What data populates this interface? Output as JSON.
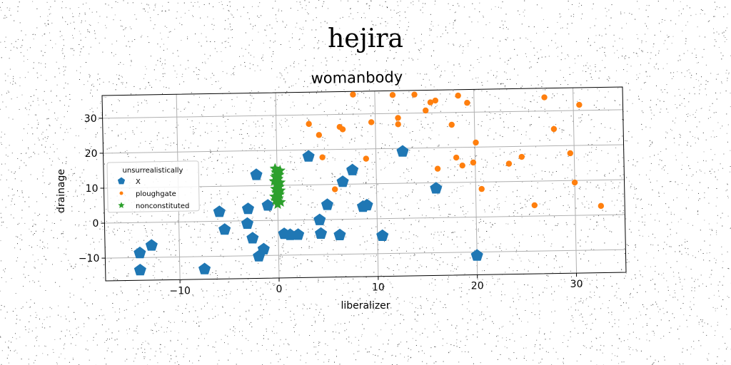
{
  "figure": {
    "suptitle": "hejira"
  },
  "chart_data": {
    "type": "scatter",
    "title": "womanbody",
    "xlabel": "liberalizer",
    "ylabel": "drainage",
    "xlim": [
      -17.5,
      35
    ],
    "ylim": [
      -16.5,
      36.5
    ],
    "xticks": [
      -10,
      0,
      10,
      20,
      30
    ],
    "yticks": [
      -10,
      0,
      10,
      20,
      30
    ],
    "xtick_labels": [
      "−10",
      "0",
      "10",
      "20",
      "30"
    ],
    "ytick_labels": [
      "−10",
      "0",
      "10",
      "20",
      "30"
    ],
    "grid": true,
    "legend": {
      "title": "unsurrealistically",
      "placement": "center-left"
    },
    "series": [
      {
        "name": "X",
        "marker": "pentagon",
        "color": "#1f77b4",
        "points": [
          [
            -14,
            -8.7
          ],
          [
            -12.8,
            -6.6
          ],
          [
            -14,
            -13.6
          ],
          [
            -7.5,
            -13.6
          ],
          [
            -5.9,
            2.7
          ],
          [
            -5.4,
            -2.4
          ],
          [
            -3,
            3.4
          ],
          [
            -3.1,
            -0.8
          ],
          [
            -2.6,
            -5
          ],
          [
            -2,
            -10.2
          ],
          [
            -1.5,
            -8.2
          ],
          [
            -2.1,
            13.1
          ],
          [
            -1,
            4.3
          ],
          [
            0.6,
            -3.9
          ],
          [
            1.2,
            -4.2
          ],
          [
            2,
            -4.2
          ],
          [
            3.2,
            18.1
          ],
          [
            4.2,
            -0.1
          ],
          [
            4.3,
            -4
          ],
          [
            5,
            4.2
          ],
          [
            6.2,
            -4.5
          ],
          [
            6.6,
            10.7
          ],
          [
            7.6,
            14
          ],
          [
            8.6,
            3.5
          ],
          [
            9,
            3.9
          ],
          [
            10.5,
            -4.9
          ],
          [
            12.7,
            19.1
          ],
          [
            16,
            8.4
          ],
          [
            20,
            -11
          ]
        ]
      },
      {
        "name": "ploughgate",
        "marker": "circle",
        "color": "#ff7f0e",
        "points": [
          [
            0,
            13
          ],
          [
            3.3,
            27.4
          ],
          [
            4.3,
            24.2
          ],
          [
            4.6,
            17.8
          ],
          [
            5.8,
            8.6
          ],
          [
            6.4,
            26.4
          ],
          [
            6.7,
            25.7
          ],
          [
            7.8,
            35.6
          ],
          [
            9,
            17.2
          ],
          [
            9.6,
            27.6
          ],
          [
            11.8,
            35.3
          ],
          [
            12.3,
            28.7
          ],
          [
            12.3,
            26.9
          ],
          [
            14,
            35.3
          ],
          [
            15.1,
            30.7
          ],
          [
            15.6,
            33
          ],
          [
            16.1,
            33.5
          ],
          [
            16.2,
            14
          ],
          [
            17.7,
            26.5
          ],
          [
            18.1,
            17.1
          ],
          [
            18.4,
            34.8
          ],
          [
            18.7,
            14.8
          ],
          [
            19.3,
            32.7
          ],
          [
            19.8,
            15.6
          ],
          [
            20.1,
            21.3
          ],
          [
            20.6,
            8
          ],
          [
            23.4,
            15.1
          ],
          [
            24.7,
            17
          ],
          [
            25.9,
            3.1
          ],
          [
            27.1,
            33.9
          ],
          [
            28,
            24.8
          ],
          [
            29.6,
            17.8
          ],
          [
            30,
            9.4
          ],
          [
            30.6,
            31.6
          ],
          [
            32.6,
            2.6
          ]
        ]
      },
      {
        "name": "nonconstituted",
        "marker": "star",
        "color": "#2ca02c",
        "points": [
          [
            -0.2,
            14.8
          ],
          [
            0.3,
            14.2
          ],
          [
            -0.1,
            13.7
          ],
          [
            0.2,
            13
          ],
          [
            -0.2,
            12.4
          ],
          [
            0.1,
            11.9
          ],
          [
            -0.3,
            11.2
          ],
          [
            0.3,
            10.8
          ],
          [
            -0.1,
            10.3
          ],
          [
            0.2,
            9.6
          ],
          [
            -0.2,
            9
          ],
          [
            0.3,
            8.5
          ],
          [
            -0.1,
            8
          ],
          [
            0.2,
            7.4
          ],
          [
            -0.3,
            6.8
          ],
          [
            0.1,
            6.3
          ],
          [
            -0.2,
            5.7
          ],
          [
            0.3,
            5.2
          ],
          [
            0,
            4.6
          ],
          [
            -0.1,
            12.8
          ],
          [
            0.1,
            7.8
          ],
          [
            0,
            10
          ]
        ]
      }
    ]
  }
}
